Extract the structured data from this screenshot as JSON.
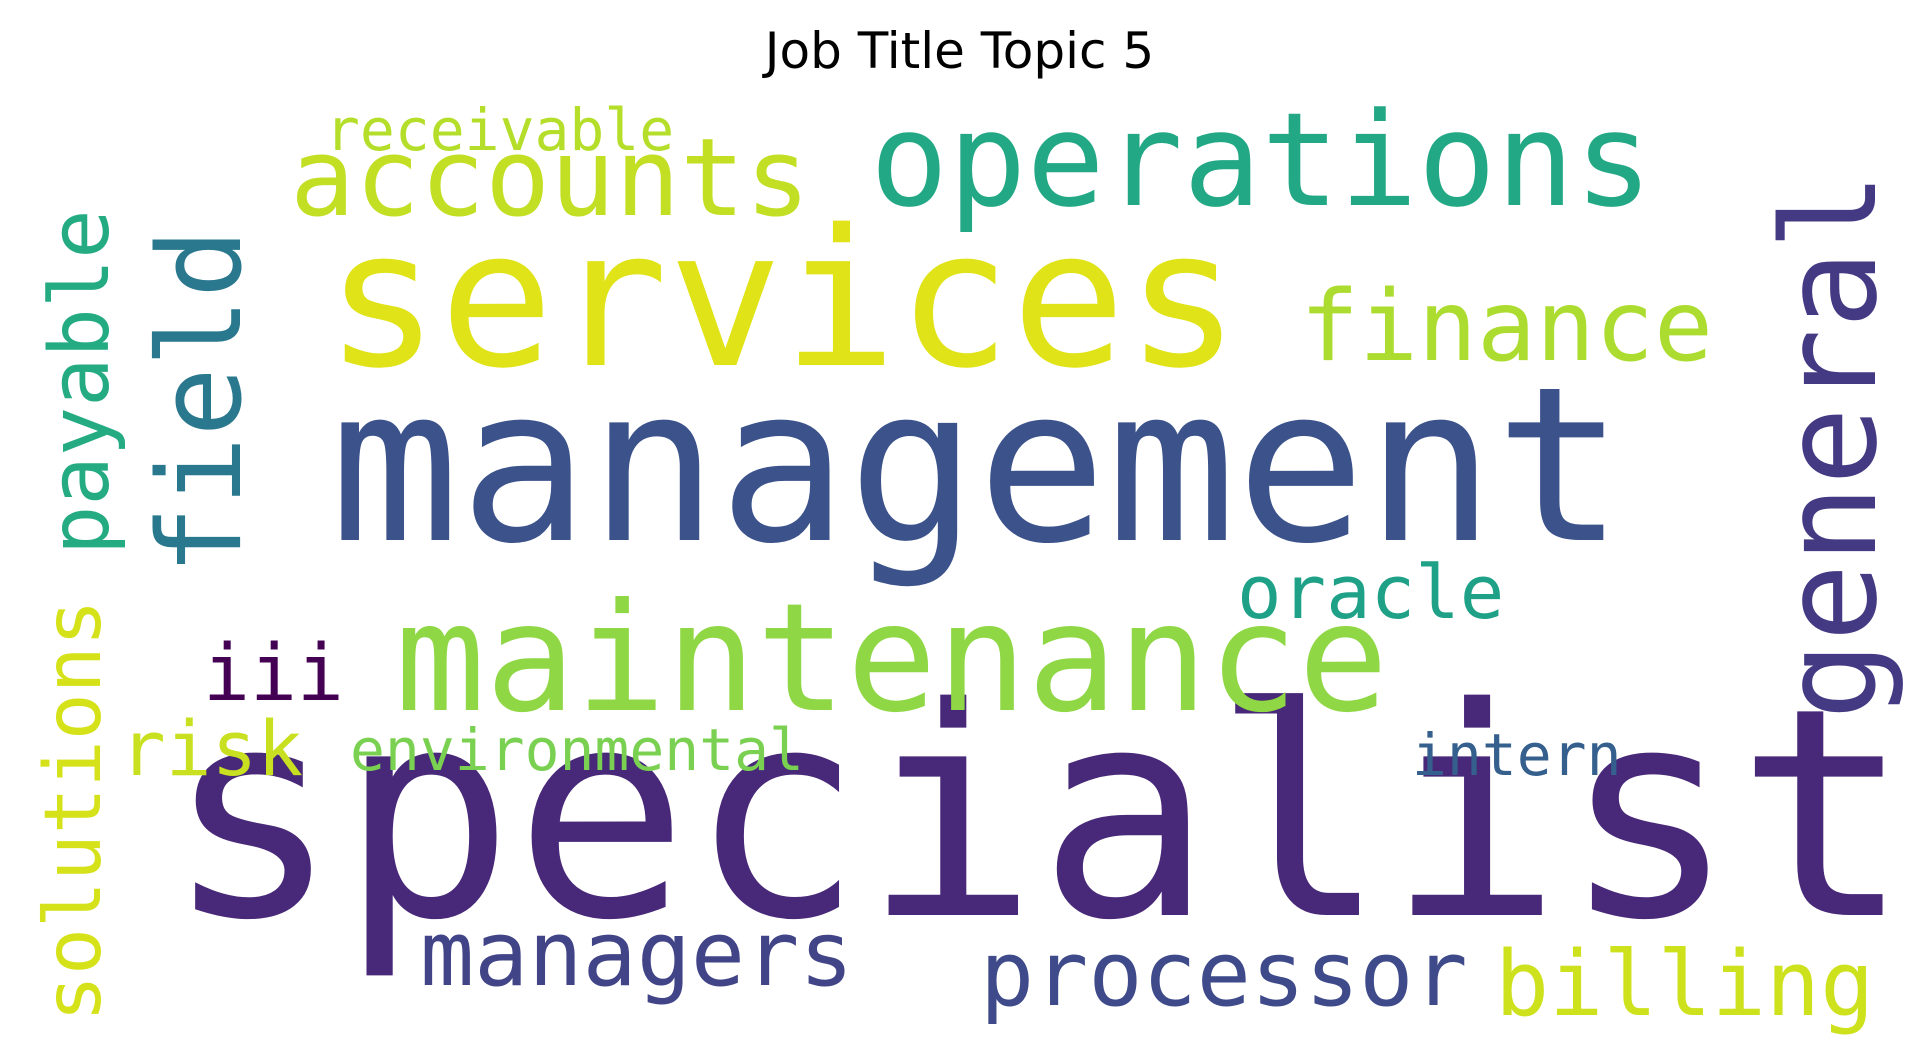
{
  "title": "Job Title Topic 5",
  "chart_data": {
    "type": "wordcloud",
    "title": "Job Title Topic 5",
    "words": [
      {
        "text": "specialist",
        "weight": 1.0,
        "color": "#482878",
        "orientation": "horizontal"
      },
      {
        "text": "management",
        "weight": 0.82,
        "color": "#3b528b",
        "orientation": "horizontal"
      },
      {
        "text": "services",
        "weight": 0.74,
        "color": "#dfe318",
        "orientation": "horizontal"
      },
      {
        "text": "maintenance",
        "weight": 0.6,
        "color": "#8fd744",
        "orientation": "horizontal"
      },
      {
        "text": "operations",
        "weight": 0.52,
        "color": "#22a884",
        "orientation": "horizontal"
      },
      {
        "text": "general",
        "weight": 0.52,
        "color": "#443983",
        "orientation": "vertical"
      },
      {
        "text": "field",
        "weight": 0.45,
        "color": "#2a788e",
        "orientation": "vertical"
      },
      {
        "text": "accounts",
        "weight": 0.42,
        "color": "#c2df23",
        "orientation": "horizontal"
      },
      {
        "text": "finance",
        "weight": 0.39,
        "color": "#addc30",
        "orientation": "horizontal"
      },
      {
        "text": "managers",
        "weight": 0.36,
        "color": "#414487",
        "orientation": "horizontal"
      },
      {
        "text": "processor",
        "weight": 0.36,
        "color": "#3e4a89",
        "orientation": "horizontal"
      },
      {
        "text": "billing",
        "weight": 0.35,
        "color": "#cde11d",
        "orientation": "horizontal"
      },
      {
        "text": "payable",
        "weight": 0.33,
        "color": "#25ab82",
        "orientation": "vertical"
      },
      {
        "text": "solutions",
        "weight": 0.32,
        "color": "#d5e21a",
        "orientation": "vertical"
      },
      {
        "text": "iii",
        "weight": 0.32,
        "color": "#440154",
        "orientation": "horizontal"
      },
      {
        "text": "risk",
        "weight": 0.31,
        "color": "#c8e020",
        "orientation": "horizontal"
      },
      {
        "text": "oracle",
        "weight": 0.3,
        "color": "#1fa187",
        "orientation": "horizontal"
      },
      {
        "text": "receivable",
        "weight": 0.25,
        "color": "#b5de2b",
        "orientation": "horizontal"
      },
      {
        "text": "environmental",
        "weight": 0.25,
        "color": "#7ad151",
        "orientation": "horizontal"
      },
      {
        "text": "intern",
        "weight": 0.24,
        "color": "#355f8d",
        "orientation": "horizontal"
      }
    ]
  }
}
